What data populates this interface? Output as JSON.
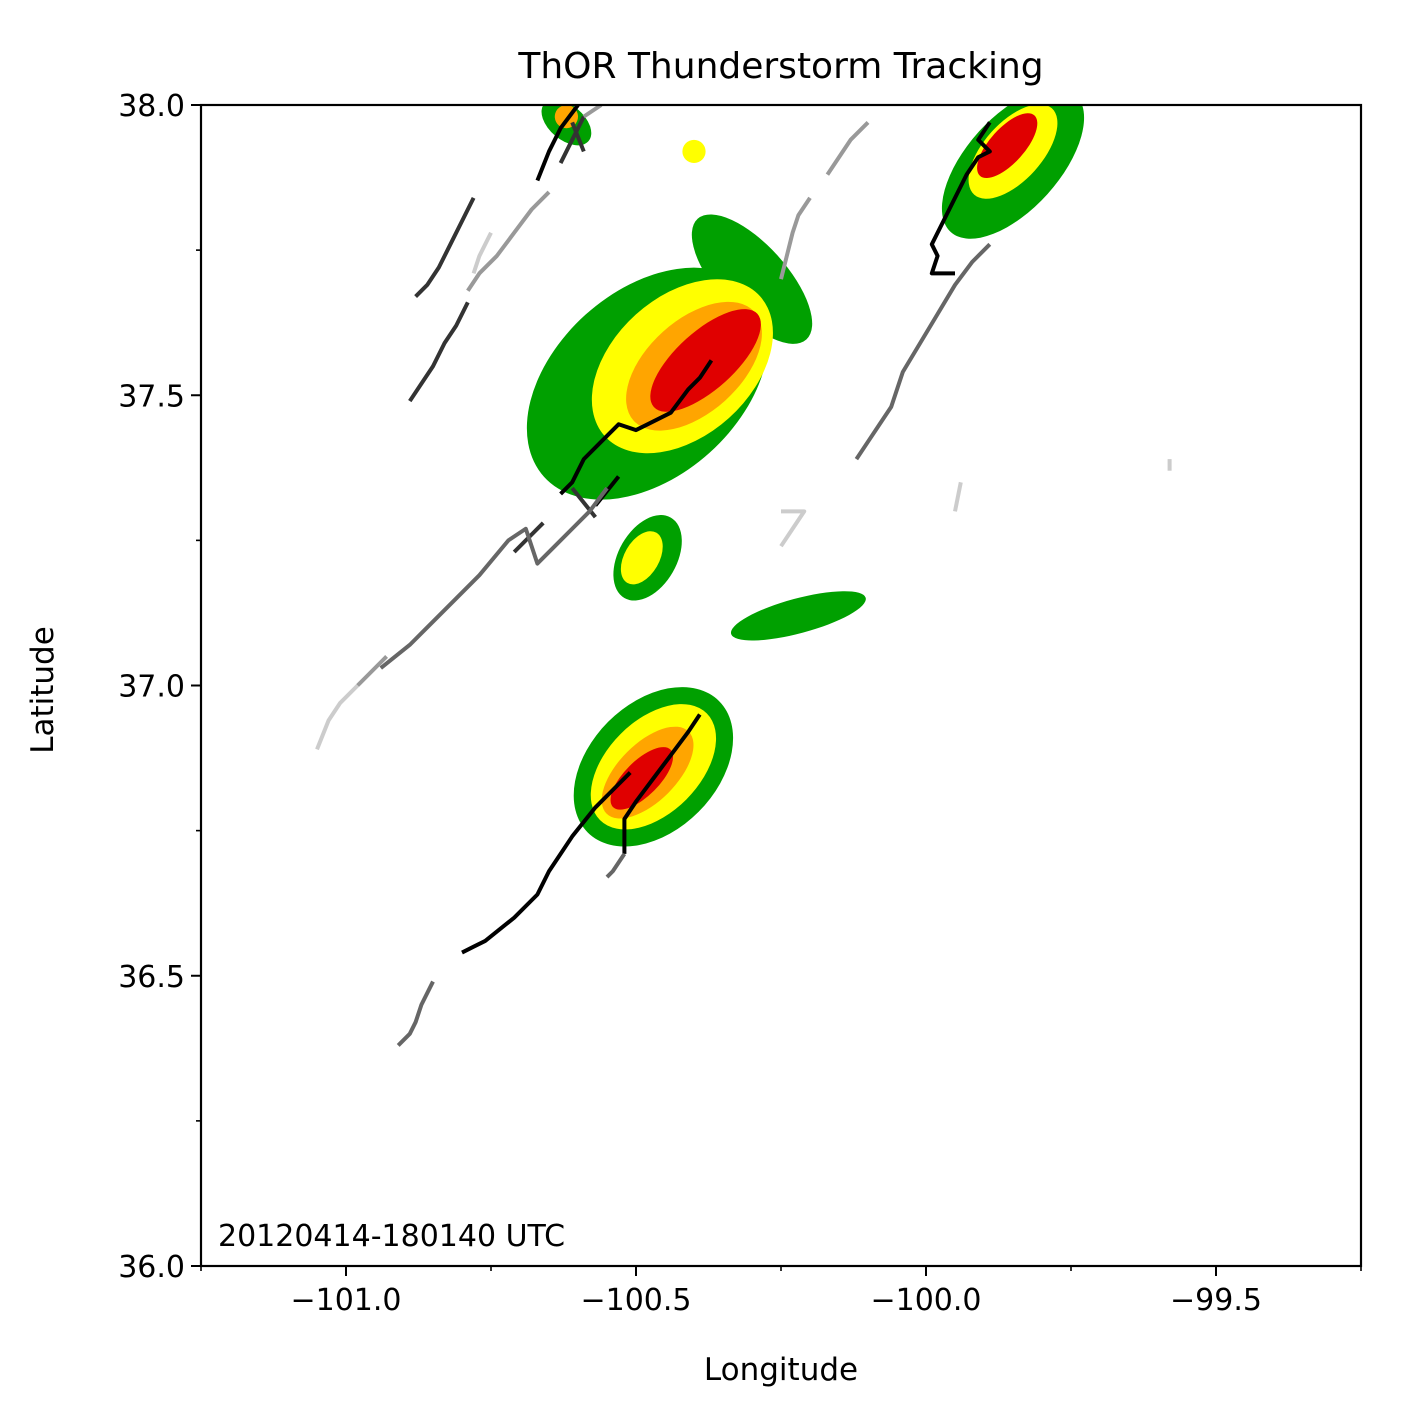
{
  "chart_data": {
    "type": "radar-track-map",
    "title": "ThOR Thunderstorm Tracking",
    "xlabel": "Longitude",
    "ylabel": "Latitude",
    "annotation": "20120414-180140 UTC",
    "xlim": [
      -101.25,
      -99.25
    ],
    "ylim": [
      36.0,
      38.0
    ],
    "x_ticks": [
      -101.0,
      -100.5,
      -100.0,
      -99.5
    ],
    "x_tick_labels": [
      "−101.0",
      "−100.5",
      "−100.0",
      "−99.5"
    ],
    "x_minor_ticks": [
      -101.25,
      -100.75,
      -100.25,
      -99.75,
      -99.25
    ],
    "y_ticks": [
      36.0,
      36.5,
      37.0,
      37.5,
      38.0
    ],
    "y_tick_labels": [
      "36.0",
      "36.5",
      "37.0",
      "37.5",
      "38.0"
    ],
    "y_minor_ticks": [
      36.25,
      36.75,
      37.25,
      37.75
    ],
    "grid": false,
    "reflectivity_colors": {
      "light": "#00a000",
      "moderate": "#ffff00",
      "heavy": "#ffa500",
      "intense": "#e00000",
      "extreme": "#ff00ff"
    },
    "storms": [
      {
        "cells": [
          {
            "lon": -100.48,
            "lat": 37.52,
            "rx": 0.16,
            "ry": 0.24,
            "level": "light"
          },
          {
            "lon": -100.3,
            "lat": 37.7,
            "rx": 0.14,
            "ry": 0.06,
            "level": "light"
          },
          {
            "lon": -100.42,
            "lat": 37.55,
            "rx": 0.12,
            "ry": 0.18,
            "level": "moderate"
          },
          {
            "lon": -100.4,
            "lat": 37.55,
            "rx": 0.08,
            "ry": 0.14,
            "level": "heavy"
          },
          {
            "lon": -100.38,
            "lat": 37.56,
            "rx": 0.05,
            "ry": 0.12,
            "level": "intense"
          }
        ],
        "rotation": 48
      },
      {
        "cells": [
          {
            "lon": -100.47,
            "lat": 36.86,
            "rx": 0.11,
            "ry": 0.16,
            "level": "light"
          },
          {
            "lon": -100.47,
            "lat": 36.86,
            "rx": 0.08,
            "ry": 0.13,
            "level": "moderate"
          },
          {
            "lon": -100.48,
            "lat": 36.85,
            "rx": 0.05,
            "ry": 0.1,
            "level": "heavy"
          },
          {
            "lon": -100.49,
            "lat": 36.84,
            "rx": 0.03,
            "ry": 0.07,
            "level": "intense"
          }
        ],
        "rotation": 45
      },
      {
        "cells": [
          {
            "lon": -99.85,
            "lat": 37.9,
            "rx": 0.08,
            "ry": 0.16,
            "level": "light"
          },
          {
            "lon": -99.85,
            "lat": 37.92,
            "rx": 0.05,
            "ry": 0.1,
            "level": "moderate"
          },
          {
            "lon": -99.86,
            "lat": 37.93,
            "rx": 0.03,
            "ry": 0.07,
            "level": "intense"
          }
        ],
        "rotation": 42
      },
      {
        "cells": [
          {
            "lon": -100.48,
            "lat": 37.22,
            "rx": 0.05,
            "ry": 0.08,
            "level": "light"
          },
          {
            "lon": -100.49,
            "lat": 37.22,
            "rx": 0.03,
            "ry": 0.05,
            "level": "moderate"
          }
        ],
        "rotation": 30
      },
      {
        "cells": [
          {
            "lon": -100.22,
            "lat": 37.12,
            "rx": 0.03,
            "ry": 0.12,
            "level": "light"
          }
        ],
        "rotation": 75
      },
      {
        "cells": [
          {
            "lon": -100.62,
            "lat": 37.97,
            "rx": 0.05,
            "ry": 0.03,
            "level": "light"
          },
          {
            "lon": -100.62,
            "lat": 37.98,
            "rx": 0.02,
            "ry": 0.02,
            "level": "heavy"
          }
        ],
        "rotation": 40
      },
      {
        "cells": [
          {
            "lon": -100.4,
            "lat": 37.92,
            "rx": 0.02,
            "ry": 0.02,
            "level": "moderate"
          }
        ],
        "rotation": 0
      }
    ],
    "tracks": [
      {
        "color": "#000000",
        "points": [
          [
            -100.37,
            37.56
          ],
          [
            -100.39,
            37.53
          ],
          [
            -100.41,
            37.51
          ],
          [
            -100.44,
            37.47
          ],
          [
            -100.48,
            37.45
          ],
          [
            -100.5,
            37.44
          ],
          [
            -100.53,
            37.45
          ],
          [
            -100.56,
            37.42
          ],
          [
            -100.59,
            37.39
          ],
          [
            -100.61,
            37.35
          ],
          [
            -100.63,
            37.33
          ]
        ]
      },
      {
        "color": "#000000",
        "points": [
          [
            -100.39,
            36.95
          ],
          [
            -100.41,
            36.92
          ],
          [
            -100.44,
            36.88
          ],
          [
            -100.47,
            36.84
          ],
          [
            -100.5,
            36.8
          ],
          [
            -100.52,
            36.77
          ],
          [
            -100.52,
            36.71
          ]
        ]
      },
      {
        "color": "#000000",
        "points": [
          [
            -100.51,
            36.85
          ],
          [
            -100.54,
            36.82
          ],
          [
            -100.57,
            36.79
          ],
          [
            -100.61,
            36.74
          ],
          [
            -100.63,
            36.71
          ],
          [
            -100.65,
            36.68
          ],
          [
            -100.67,
            36.64
          ],
          [
            -100.71,
            36.6
          ],
          [
            -100.76,
            36.56
          ],
          [
            -100.78,
            36.55
          ],
          [
            -100.8,
            36.54
          ]
        ]
      },
      {
        "color": "#000000",
        "points": [
          [
            -99.89,
            37.97
          ],
          [
            -99.91,
            37.94
          ],
          [
            -99.89,
            37.92
          ],
          [
            -99.91,
            37.91
          ],
          [
            -99.93,
            37.88
          ],
          [
            -99.95,
            37.84
          ],
          [
            -99.97,
            37.8
          ],
          [
            -99.99,
            37.76
          ],
          [
            -99.98,
            37.74
          ],
          [
            -99.99,
            37.71
          ],
          [
            -99.95,
            37.71
          ]
        ]
      },
      {
        "color": "#000000",
        "points": [
          [
            -100.53,
            37.36
          ],
          [
            -100.57,
            37.31
          ]
        ]
      },
      {
        "color": "#000000",
        "points": [
          [
            -100.67,
            37.87
          ],
          [
            -100.65,
            37.92
          ],
          [
            -100.63,
            37.96
          ],
          [
            -100.6,
            38.0
          ]
        ]
      },
      {
        "color": "#333333",
        "points": [
          [
            -100.57,
            37.29
          ],
          [
            -100.61,
            37.34
          ]
        ]
      },
      {
        "color": "#333333",
        "points": [
          [
            -100.59,
            37.92
          ],
          [
            -100.61,
            37.97
          ]
        ]
      },
      {
        "color": "#333333",
        "points": [
          [
            -100.63,
            37.9
          ],
          [
            -100.61,
            37.94
          ],
          [
            -100.59,
            37.98
          ]
        ]
      },
      {
        "color": "#333333",
        "points": [
          [
            -100.79,
            37.66
          ],
          [
            -100.81,
            37.62
          ],
          [
            -100.83,
            37.59
          ],
          [
            -100.85,
            37.55
          ],
          [
            -100.87,
            37.52
          ],
          [
            -100.89,
            37.49
          ]
        ]
      },
      {
        "color": "#333333",
        "points": [
          [
            -100.78,
            37.84
          ],
          [
            -100.8,
            37.8
          ],
          [
            -100.82,
            37.76
          ],
          [
            -100.84,
            37.72
          ],
          [
            -100.86,
            37.69
          ],
          [
            -100.88,
            37.67
          ]
        ]
      },
      {
        "color": "#333333",
        "points": [
          [
            -100.66,
            37.28
          ],
          [
            -100.69,
            37.25
          ],
          [
            -100.71,
            37.23
          ]
        ]
      },
      {
        "color": "#666666",
        "points": [
          [
            -100.55,
            37.34
          ],
          [
            -100.58,
            37.3
          ],
          [
            -100.61,
            37.27
          ],
          [
            -100.64,
            37.24
          ],
          [
            -100.67,
            37.21
          ],
          [
            -100.69,
            37.27
          ],
          [
            -100.72,
            37.25
          ],
          [
            -100.77,
            37.19
          ],
          [
            -100.81,
            37.15
          ],
          [
            -100.86,
            37.1
          ],
          [
            -100.89,
            37.07
          ],
          [
            -100.94,
            37.03
          ]
        ]
      },
      {
        "color": "#666666",
        "points": [
          [
            -99.89,
            37.76
          ],
          [
            -99.92,
            37.73
          ],
          [
            -99.95,
            37.69
          ],
          [
            -99.98,
            37.64
          ],
          [
            -100.01,
            37.59
          ],
          [
            -100.04,
            37.54
          ],
          [
            -100.06,
            37.48
          ],
          [
            -100.08,
            37.45
          ],
          [
            -100.1,
            37.42
          ],
          [
            -100.12,
            37.39
          ]
        ]
      },
      {
        "color": "#666666",
        "points": [
          [
            -100.52,
            36.71
          ],
          [
            -100.54,
            36.68
          ],
          [
            -100.55,
            36.67
          ]
        ]
      },
      {
        "color": "#666666",
        "points": [
          [
            -100.85,
            36.49
          ],
          [
            -100.87,
            36.45
          ],
          [
            -100.88,
            36.42
          ],
          [
            -100.89,
            36.4
          ],
          [
            -100.91,
            36.38
          ]
        ]
      },
      {
        "color": "#999999",
        "points": [
          [
            -100.65,
            37.85
          ],
          [
            -100.68,
            37.82
          ],
          [
            -100.71,
            37.78
          ],
          [
            -100.74,
            37.74
          ],
          [
            -100.77,
            37.71
          ],
          [
            -100.79,
            37.68
          ]
        ]
      },
      {
        "color": "#999999",
        "points": [
          [
            -100.2,
            37.84
          ],
          [
            -100.22,
            37.81
          ],
          [
            -100.23,
            37.78
          ],
          [
            -100.24,
            37.74
          ],
          [
            -100.25,
            37.7
          ]
        ]
      },
      {
        "color": "#999999",
        "points": [
          [
            -100.1,
            37.97
          ],
          [
            -100.13,
            37.94
          ],
          [
            -100.15,
            37.91
          ],
          [
            -100.17,
            37.88
          ]
        ]
      },
      {
        "color": "#999999",
        "points": [
          [
            -100.59,
            37.98
          ],
          [
            -100.56,
            38.0
          ]
        ]
      },
      {
        "color": "#999999",
        "points": [
          [
            -100.93,
            37.05
          ],
          [
            -100.96,
            37.02
          ],
          [
            -100.98,
            37.0
          ]
        ]
      },
      {
        "color": "#cccccc",
        "points": [
          [
            -100.98,
            37.0
          ],
          [
            -101.01,
            36.97
          ],
          [
            -101.03,
            36.94
          ],
          [
            -101.05,
            36.89
          ]
        ]
      },
      {
        "color": "#cccccc",
        "points": [
          [
            -100.75,
            37.78
          ],
          [
            -100.77,
            37.74
          ],
          [
            -100.78,
            37.71
          ]
        ]
      },
      {
        "color": "#cccccc",
        "points": [
          [
            -100.25,
            37.24
          ],
          [
            -100.23,
            37.27
          ],
          [
            -100.21,
            37.3
          ],
          [
            -100.25,
            37.3
          ]
        ]
      },
      {
        "color": "#cccccc",
        "points": [
          [
            -99.94,
            37.35
          ],
          [
            -99.95,
            37.3
          ]
        ]
      },
      {
        "color": "#cccccc",
        "points": [
          [
            -99.58,
            37.39
          ],
          [
            -99.58,
            37.37
          ]
        ]
      }
    ]
  }
}
